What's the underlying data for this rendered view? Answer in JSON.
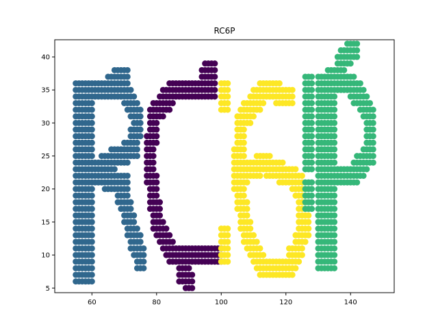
{
  "chart_data": {
    "type": "scatter",
    "title": "RC6P",
    "xlabel": "",
    "ylabel": "",
    "xlim": [
      48.5,
      153.5
    ],
    "ylim": [
      4.3,
      42.6
    ],
    "xticks": [
      60,
      80,
      100,
      120,
      140
    ],
    "yticks": [
      5,
      10,
      15,
      20,
      25,
      30,
      35,
      40
    ],
    "grid": false,
    "colors": [
      "#30678d",
      "#440154",
      "#fde725",
      "#35b779"
    ],
    "letters": [
      {
        "char": "R",
        "color": "#30678d",
        "strokes": [
          [
            [
              56,
              6.5
            ],
            [
              56,
              35
            ]
          ],
          [
            [
              59,
              6.5
            ],
            [
              59,
              35
            ]
          ],
          [
            [
              56,
              35
            ],
            [
              70,
              35
            ]
          ],
          [
            [
              70,
              35
            ],
            [
              74,
              31
            ]
          ],
          [
            [
              74,
              31
            ],
            [
              73,
              26
            ]
          ],
          [
            [
              73,
              26
            ],
            [
              58,
              22
            ]
          ],
          [
            [
              58,
              22
            ],
            [
              70,
              21
            ]
          ],
          [
            [
              68,
              21
            ],
            [
              75,
              9
            ]
          ],
          [
            [
              66,
              36
            ],
            [
              70,
              37
            ]
          ]
        ]
      },
      {
        "char": "C",
        "color": "#440154",
        "strokes": [
          [
            [
              97,
              35
            ],
            [
              86,
              35
            ]
          ],
          [
            [
              86,
              35
            ],
            [
              79,
              31
            ]
          ],
          [
            [
              79,
              31
            ],
            [
              78,
              24
            ]
          ],
          [
            [
              78,
              24
            ],
            [
              80,
              15
            ]
          ],
          [
            [
              80,
              15
            ],
            [
              85,
              10
            ]
          ],
          [
            [
              85,
              10
            ],
            [
              99,
              10
            ]
          ],
          [
            [
              95,
              37
            ],
            [
              97,
              38
            ]
          ],
          [
            [
              88,
              7
            ],
            [
              90,
              6
            ]
          ]
        ]
      },
      {
        "char": "6",
        "color": "#fde725",
        "strokes": [
          [
            [
              121,
              34
            ],
            [
              113,
              35
            ]
          ],
          [
            [
              113,
              35
            ],
            [
              106,
              30
            ]
          ],
          [
            [
              106,
              30
            ],
            [
              105,
              22
            ]
          ],
          [
            [
              105,
              22
            ],
            [
              108,
              13
            ]
          ],
          [
            [
              108,
              13
            ],
            [
              113,
              8
            ]
          ],
          [
            [
              113,
              8
            ],
            [
              121,
              8
            ]
          ],
          [
            [
              121,
              8
            ],
            [
              126,
              14
            ]
          ],
          [
            [
              126,
              14
            ],
            [
              124,
              21
            ]
          ],
          [
            [
              124,
              21
            ],
            [
              113,
              24
            ]
          ],
          [
            [
              113,
              24
            ],
            [
              106,
              22
            ]
          ],
          [
            [
              101,
              35
            ],
            [
              101,
              33
            ]
          ],
          [
            [
              101,
              13
            ],
            [
              101,
              10
            ]
          ]
        ]
      },
      {
        "char": "P",
        "color": "#35b779",
        "strokes": [
          [
            [
              131,
              9
            ],
            [
              131,
              36
            ]
          ],
          [
            [
              134,
              9
            ],
            [
              134,
              37
            ]
          ],
          [
            [
              127,
              20
            ],
            [
              127,
              18
            ]
          ],
          [
            [
              131,
              36
            ],
            [
              140,
              36
            ]
          ],
          [
            [
              140,
              36
            ],
            [
              146,
              31
            ]
          ],
          [
            [
              146,
              31
            ],
            [
              146,
              25
            ]
          ],
          [
            [
              146,
              25
            ],
            [
              140,
              22
            ]
          ],
          [
            [
              140,
              22
            ],
            [
              131,
              22
            ]
          ],
          [
            [
              137,
              39
            ],
            [
              141,
              41
            ]
          ],
          [
            [
              127,
              36
            ],
            [
              127,
              24
            ]
          ]
        ]
      }
    ]
  }
}
